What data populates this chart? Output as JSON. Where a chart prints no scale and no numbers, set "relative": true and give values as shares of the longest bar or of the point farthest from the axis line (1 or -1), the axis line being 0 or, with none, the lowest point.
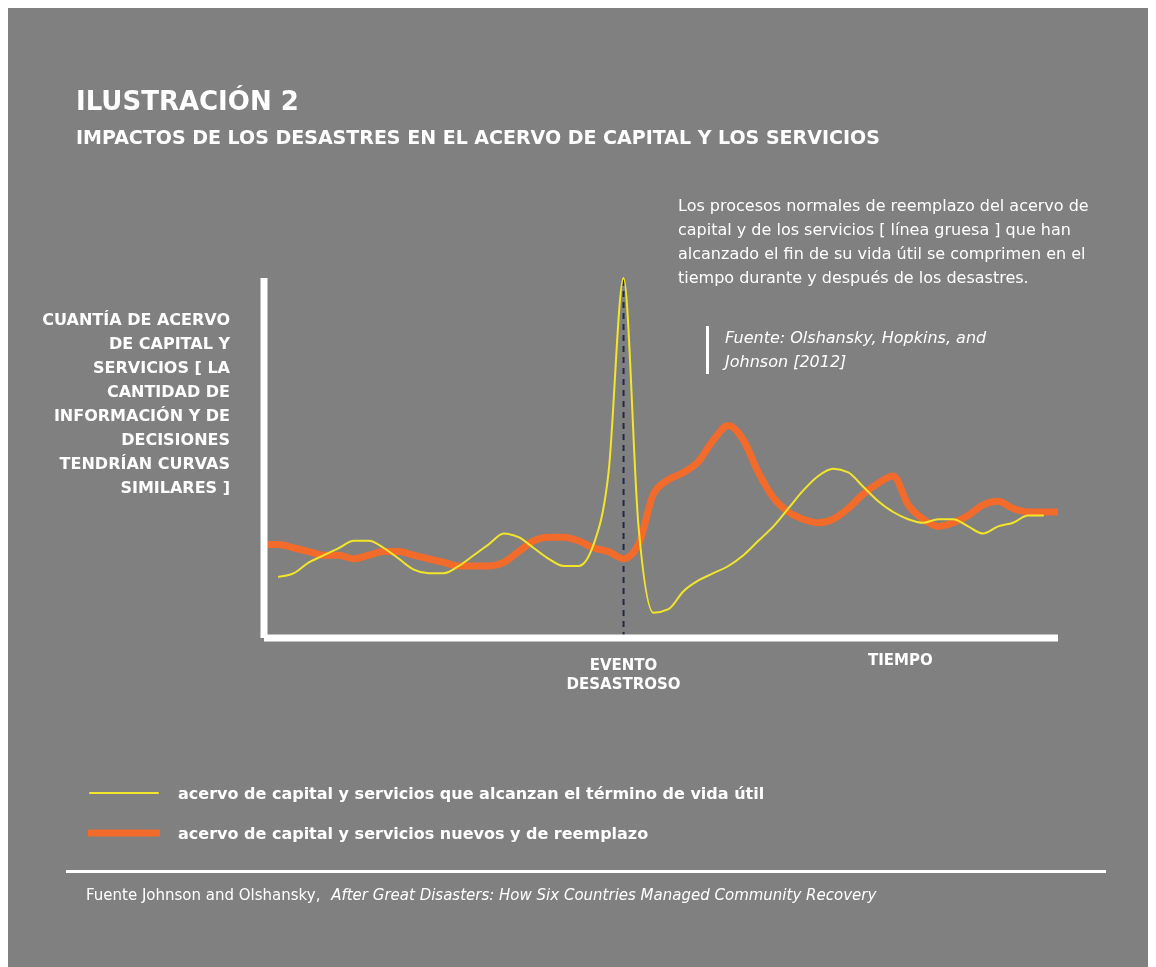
{
  "chart_data": {
    "type": "line",
    "title": "ILUSTRACIÓN 2",
    "subtitle": "IMPACTOS DE LOS DESASTRES EN EL ACERVO DE CAPITAL Y LOS SERVICIOS",
    "ylabel": "CUANTÍA DE ACERVO DE CAPITAL Y SERVICIOS [ LA CANTIDAD DE INFORMACIÓN Y DE DECISIONES TENDRÍAN CURVAS SIMILARES ]",
    "xlabel": "TIEMPO",
    "relative": true,
    "legend": "bottom",
    "grid": false,
    "marker": "none",
    "categories": [
      null,
      null,
      null,
      null,
      null,
      null,
      null,
      null,
      null,
      null,
      null,
      null,
      null,
      null,
      null,
      null,
      null,
      null,
      null,
      null,
      null,
      null,
      null,
      null,
      null,
      null,
      null,
      null,
      null,
      null,
      null,
      null,
      null,
      null,
      null,
      null,
      null,
      null,
      null,
      null,
      null,
      null,
      null,
      null,
      null,
      null,
      null,
      null,
      null,
      null,
      null,
      null,
      null,
      null
    ],
    "series": [
      {
        "name": "acervo de capital y servicios que alcanzan el término de vida útil",
        "color": "#f2e52a",
        "values": [
          null,
          0.17,
          0.18,
          0.21,
          0.23,
          0.25,
          0.27,
          0.27,
          0.25,
          0.22,
          0.19,
          0.18,
          0.18,
          0.2,
          0.23,
          0.26,
          0.29,
          0.28,
          0.25,
          0.22,
          0.2,
          0.2,
          0.26,
          0.46,
          1,
          0.31,
          0.07,
          0.08,
          0.13,
          0.16,
          0.18,
          0.2,
          0.23,
          0.27,
          0.31,
          0.36,
          0.41,
          0.45,
          0.47,
          0.46,
          0.42,
          0.38,
          0.35,
          0.33,
          0.32,
          0.33,
          0.33,
          0.31,
          0.29,
          0.31,
          0.32,
          0.34,
          0.34,
          null
        ]
      },
      {
        "name": "acervo de capital y servicios nuevos y de reemplazo",
        "color": "#f26b2b",
        "values": [
          0.26,
          0.26,
          0.25,
          0.24,
          0.23,
          0.23,
          0.22,
          0.23,
          0.24,
          0.24,
          0.23,
          0.22,
          0.21,
          0.2,
          0.2,
          0.2,
          0.21,
          0.24,
          0.27,
          0.28,
          0.28,
          0.27,
          0.25,
          0.24,
          0.22,
          0.26,
          0.4,
          0.44,
          0.46,
          0.49,
          0.55,
          0.59,
          0.55,
          0.46,
          0.39,
          0.35,
          0.33,
          0.32,
          0.33,
          0.36,
          0.4,
          0.43,
          0.45,
          0.37,
          0.33,
          0.31,
          0.32,
          0.34,
          0.37,
          0.38,
          0.36,
          0.35,
          0.35,
          0.35
        ]
      }
    ],
    "annotations": [
      "EVENTO DESASTROSO",
      "Los procesos normales de reemplazo del acervo de capital y de los servicios [ línea gruesa ] que han alcanzado el fin de su vida útil se comprimen en el tiempo durante y después de los desastres.",
      "Fuente: Olshansky, Hopkins, and Johnson [2012]",
      "Fuente Johnson and Olshansky,",
      "After Great Disasters: How Six Countries Managed Community Recovery"
    ]
  }
}
